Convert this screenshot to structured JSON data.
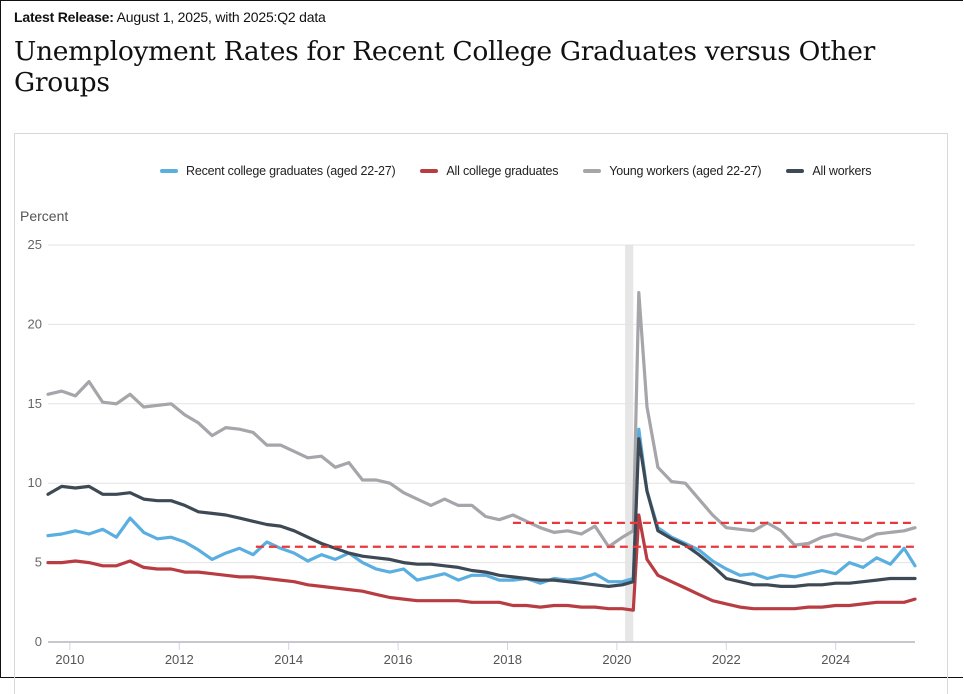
{
  "header": {
    "release_label": "Latest Release:",
    "release_text": " August 1, 2025, with 2025:Q2 data",
    "title": "Unemployment Rates for Recent College Graduates versus Other Groups"
  },
  "chart_data": {
    "type": "line",
    "title": "Unemployment Rates for Recent College Graduates versus Other Groups",
    "ylabel": "Percent",
    "xlabel": "",
    "ylim": [
      0,
      25
    ],
    "xlim": [
      2009.6,
      2025.45
    ],
    "yticks": [
      0,
      5,
      10,
      15,
      20,
      25
    ],
    "xticks": [
      2010,
      2012,
      2014,
      2016,
      2018,
      2020,
      2022,
      2024
    ],
    "grid": true,
    "legend_position": "top",
    "recession_band": [
      2020.15,
      2020.3
    ],
    "reference_lines": [
      {
        "y": 7.5,
        "x_start": 2018.1,
        "x_end": 2025.45,
        "color": "#e8383b",
        "style": "dashed"
      },
      {
        "y": 6.0,
        "x_start": 2013.4,
        "x_end": 2025.45,
        "color": "#e8383b",
        "style": "dashed"
      }
    ],
    "x": [
      2009.6,
      2009.85,
      2010.1,
      2010.35,
      2010.6,
      2010.85,
      2011.1,
      2011.35,
      2011.6,
      2011.85,
      2012.1,
      2012.35,
      2012.6,
      2012.85,
      2013.1,
      2013.35,
      2013.6,
      2013.85,
      2014.1,
      2014.35,
      2014.6,
      2014.85,
      2015.1,
      2015.35,
      2015.6,
      2015.85,
      2016.1,
      2016.35,
      2016.6,
      2016.85,
      2017.1,
      2017.35,
      2017.6,
      2017.85,
      2018.1,
      2018.35,
      2018.6,
      2018.85,
      2019.1,
      2019.35,
      2019.6,
      2019.85,
      2020.1,
      2020.3,
      2020.4,
      2020.55,
      2020.75,
      2021.0,
      2021.25,
      2021.5,
      2021.75,
      2022.0,
      2022.25,
      2022.5,
      2022.75,
      2023.0,
      2023.25,
      2023.5,
      2023.75,
      2024.0,
      2024.25,
      2024.5,
      2024.75,
      2025.0,
      2025.25,
      2025.45
    ],
    "series": [
      {
        "name": "Recent college graduates (aged 22-27)",
        "color": "#5aaee0",
        "values": [
          6.7,
          6.8,
          7.0,
          6.8,
          7.1,
          6.6,
          7.8,
          6.9,
          6.5,
          6.6,
          6.3,
          5.8,
          5.2,
          5.6,
          5.9,
          5.5,
          6.3,
          5.9,
          5.6,
          5.1,
          5.5,
          5.2,
          5.6,
          5.0,
          4.6,
          4.4,
          4.6,
          3.9,
          4.1,
          4.3,
          3.9,
          4.2,
          4.2,
          3.9,
          3.9,
          4.0,
          3.7,
          4.0,
          3.9,
          4.0,
          4.3,
          3.8,
          3.8,
          4.0,
          13.4,
          9.5,
          7.2,
          6.6,
          6.2,
          5.8,
          5.1,
          4.6,
          4.2,
          4.3,
          4.0,
          4.2,
          4.1,
          4.3,
          4.5,
          4.3,
          5.0,
          4.7,
          5.3,
          4.9,
          5.9,
          4.8
        ]
      },
      {
        "name": "All college graduates",
        "color": "#b83d42",
        "values": [
          5.0,
          5.0,
          5.1,
          5.0,
          4.8,
          4.8,
          5.1,
          4.7,
          4.6,
          4.6,
          4.4,
          4.4,
          4.3,
          4.2,
          4.1,
          4.1,
          4.0,
          3.9,
          3.8,
          3.6,
          3.5,
          3.4,
          3.3,
          3.2,
          3.0,
          2.8,
          2.7,
          2.6,
          2.6,
          2.6,
          2.6,
          2.5,
          2.5,
          2.5,
          2.3,
          2.3,
          2.2,
          2.3,
          2.3,
          2.2,
          2.2,
          2.1,
          2.1,
          2.0,
          8.0,
          5.2,
          4.2,
          3.8,
          3.4,
          3.0,
          2.6,
          2.4,
          2.2,
          2.1,
          2.1,
          2.1,
          2.1,
          2.2,
          2.2,
          2.3,
          2.3,
          2.4,
          2.5,
          2.5,
          2.5,
          2.7
        ]
      },
      {
        "name": "Young workers (aged 22-27)",
        "color": "#a5a5aa",
        "values": [
          15.6,
          15.8,
          15.5,
          16.4,
          15.1,
          15.0,
          15.6,
          14.8,
          14.9,
          15.0,
          14.3,
          13.8,
          13.0,
          13.5,
          13.4,
          13.2,
          12.4,
          12.4,
          12.0,
          11.6,
          11.7,
          11.0,
          11.3,
          10.2,
          10.2,
          10.0,
          9.4,
          9.0,
          8.6,
          9.0,
          8.6,
          8.6,
          7.9,
          7.7,
          8.0,
          7.6,
          7.2,
          6.9,
          7.0,
          6.8,
          7.3,
          6.0,
          6.6,
          7.0,
          22.0,
          14.8,
          11.0,
          10.1,
          10.0,
          9.0,
          8.0,
          7.2,
          7.1,
          7.0,
          7.5,
          7.0,
          6.1,
          6.2,
          6.6,
          6.8,
          6.6,
          6.4,
          6.8,
          6.9,
          7.0,
          7.2
        ]
      },
      {
        "name": "All workers",
        "color": "#3d4a55",
        "values": [
          9.3,
          9.8,
          9.7,
          9.8,
          9.3,
          9.3,
          9.4,
          9.0,
          8.9,
          8.9,
          8.6,
          8.2,
          8.1,
          8.0,
          7.8,
          7.6,
          7.4,
          7.3,
          7.0,
          6.6,
          6.2,
          5.9,
          5.6,
          5.4,
          5.3,
          5.2,
          5.0,
          4.9,
          4.9,
          4.8,
          4.7,
          4.5,
          4.4,
          4.2,
          4.1,
          4.0,
          3.9,
          3.9,
          3.8,
          3.7,
          3.6,
          3.5,
          3.6,
          3.8,
          12.8,
          9.5,
          7.0,
          6.5,
          6.1,
          5.5,
          4.8,
          4.0,
          3.8,
          3.6,
          3.6,
          3.5,
          3.5,
          3.6,
          3.6,
          3.7,
          3.7,
          3.8,
          3.9,
          4.0,
          4.0,
          4.0
        ]
      }
    ]
  }
}
